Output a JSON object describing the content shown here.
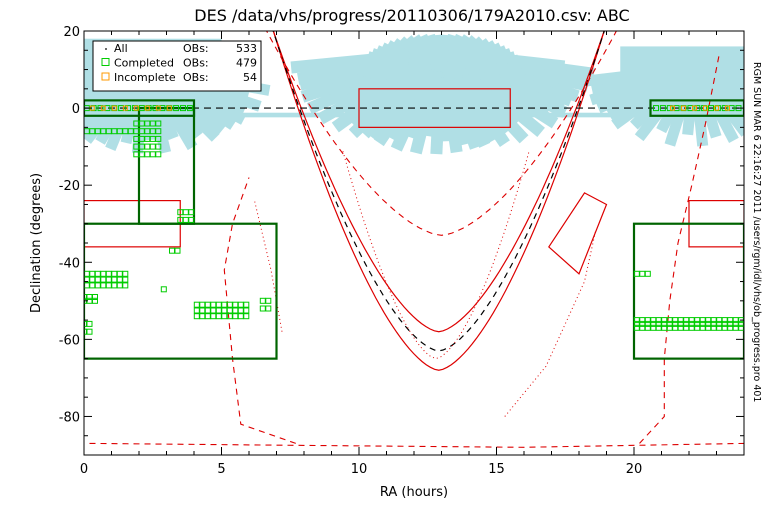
{
  "chart_data": {
    "type": "scatter",
    "title": "DES /data/vhs/progress/20110306/179A2010.csv: ABC",
    "xlabel": "RA (hours)",
    "ylabel": "Declination (degrees)",
    "xlim": [
      0,
      24
    ],
    "ylim": [
      -90,
      20
    ],
    "xticks": [
      0,
      5,
      10,
      15,
      20
    ],
    "yticks": [
      -80,
      -60,
      -40,
      -20,
      0,
      20
    ],
    "grid": false,
    "legend_position": "top-left",
    "side_annotation": "RGM SUN MAR  6 22:16:27 2011 /users/rgm/idl/vhs/ob_progress.pro 401",
    "legend": [
      {
        "label": "All",
        "ob_label": "OBs:",
        "count": "533",
        "symbol": "dot",
        "color": "#000000"
      },
      {
        "label": "Completed",
        "ob_label": "OBs:",
        "count": "479",
        "symbol": "square",
        "color": "#00cc00"
      },
      {
        "label": "Incomplete",
        "ob_label": "OBs:",
        "count": "54",
        "symbol": "square",
        "color": "#ff9900"
      }
    ],
    "colors": {
      "background_regions": "#b0dfe5",
      "survey_boxes": "#006400",
      "red_regions": "#dd0000",
      "completed": "#00cc00",
      "incomplete": "#ff9900",
      "ecliptic": "#000000"
    },
    "survey_boxes": [
      {
        "ra": [
          0,
          4
        ],
        "dec": [
          -2,
          2
        ]
      },
      {
        "ra": [
          20.6,
          24
        ],
        "dec": [
          -2,
          2
        ]
      },
      {
        "ra": [
          2,
          4
        ],
        "dec": [
          -30,
          0
        ]
      },
      {
        "ra": [
          0,
          7
        ],
        "dec": [
          -65,
          -30
        ]
      },
      {
        "ra": [
          20,
          24
        ],
        "dec": [
          -65,
          -30
        ]
      }
    ],
    "red_boxes": [
      {
        "ra": [
          10,
          15.5
        ],
        "dec": [
          -5,
          5
        ]
      },
      {
        "ra": [
          0,
          3.5
        ],
        "dec": [
          -36,
          -24
        ]
      },
      {
        "ra": [
          22,
          24
        ],
        "dec": [
          -36,
          -24
        ]
      }
    ],
    "completed_groups": [
      {
        "ra": [
          0.1,
          4.0
        ],
        "dec": [
          0,
          0
        ],
        "step_ra": 0.25,
        "step_dec": 1
      },
      {
        "ra": [
          0.1,
          1.8
        ],
        "dec": [
          -6,
          -6
        ],
        "step_ra": 0.2,
        "step_dec": 1
      },
      {
        "ra": [
          1.9,
          2.7
        ],
        "dec": [
          -4,
          -12
        ],
        "step_ra": 0.2,
        "step_dec": 2
      },
      {
        "ra": [
          3.5,
          4.0
        ],
        "dec": [
          -27,
          -29
        ],
        "step_ra": 0.2,
        "step_dec": 2
      },
      {
        "ra": [
          3.2,
          3.4
        ],
        "dec": [
          -37,
          -37
        ],
        "step_ra": 0.2,
        "step_dec": 1
      },
      {
        "ra": [
          0.1,
          1.6
        ],
        "dec": [
          -43,
          -46
        ],
        "step_ra": 0.2,
        "step_dec": 1.5
      },
      {
        "ra": [
          0,
          0.4
        ],
        "dec": [
          -49,
          -50
        ],
        "step_ra": 0.2,
        "step_dec": 1
      },
      {
        "ra": [
          2.9,
          2.9
        ],
        "dec": [
          -47,
          -47
        ],
        "step_ra": 0.2,
        "step_dec": 1
      },
      {
        "ra": [
          4.1,
          5.9
        ],
        "dec": [
          -51,
          -54
        ],
        "step_ra": 0.2,
        "step_dec": 1.5
      },
      {
        "ra": [
          6.5,
          6.7
        ],
        "dec": [
          -50,
          -52
        ],
        "step_ra": 0.2,
        "step_dec": 2
      },
      {
        "ra": [
          0,
          0.2
        ],
        "dec": [
          -56,
          -58
        ],
        "step_ra": 0.2,
        "step_dec": 2
      },
      {
        "ra": [
          20.8,
          24
        ],
        "dec": [
          0,
          0
        ],
        "step_ra": 0.25,
        "step_dec": 1
      },
      {
        "ra": [
          20.1,
          20.5
        ],
        "dec": [
          -43,
          -43
        ],
        "step_ra": 0.2,
        "step_dec": 1
      },
      {
        "ra": [
          20.1,
          24
        ],
        "dec": [
          -55,
          -57
        ],
        "step_ra": 0.2,
        "step_dec": 1
      }
    ],
    "incomplete_groups": [
      {
        "ra": [
          0.3,
          3.4
        ],
        "dec": [
          0,
          0
        ],
        "step_ra": 0.4,
        "step_dec": 1
      },
      {
        "ra": [
          21.4,
          23.6
        ],
        "dec": [
          0,
          0
        ],
        "step_ra": 0.4,
        "step_dec": 1
      }
    ]
  }
}
